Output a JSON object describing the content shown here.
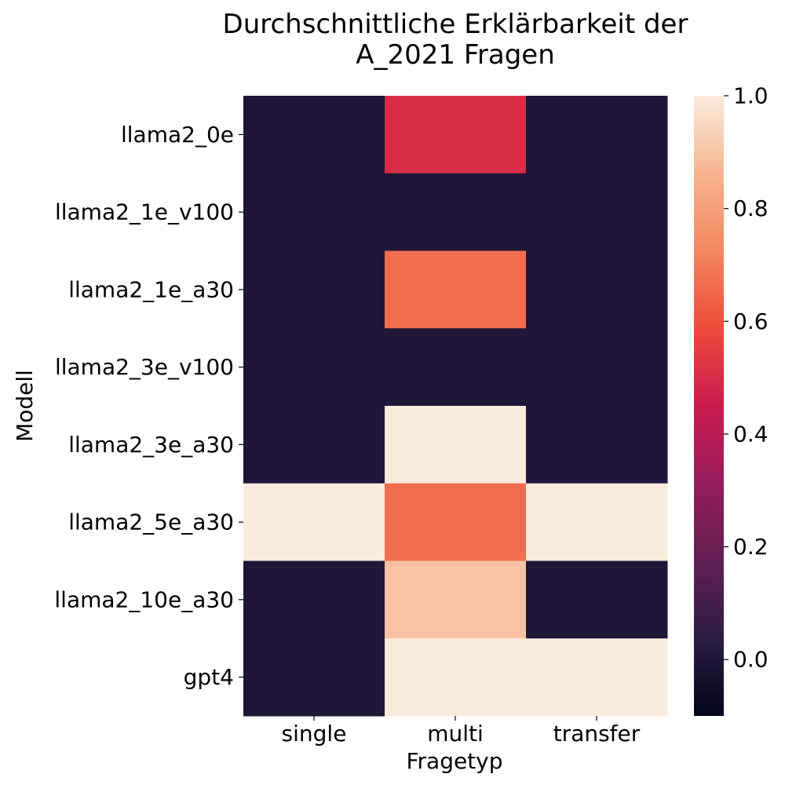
{
  "chart_data": {
    "type": "heatmap",
    "title": "Durchschnittliche Erklärbarkeit der\nA_2021 Fragen",
    "xlabel": "Fragetyp",
    "ylabel": "Modell",
    "x_categories": [
      "single",
      "multi",
      "transfer"
    ],
    "y_categories": [
      "llama2_0e",
      "llama2_1e_v100",
      "llama2_1e_a30",
      "llama2_3e_v100",
      "llama2_3e_a30",
      "llama2_5e_a30",
      "llama2_10e_a30",
      "gpt4"
    ],
    "values": [
      [
        0.0,
        0.5,
        0.0
      ],
      [
        0.0,
        0.0,
        0.0
      ],
      [
        0.0,
        0.667,
        0.0
      ],
      [
        0.0,
        0.0,
        0.0
      ],
      [
        0.0,
        1.0,
        0.0
      ],
      [
        1.0,
        0.667,
        1.0
      ],
      [
        0.0,
        0.9,
        0.0
      ],
      [
        0.0,
        1.0,
        1.0
      ]
    ],
    "colorbar": {
      "range": [
        -0.1,
        1.0
      ],
      "ticks": [
        0.0,
        0.2,
        0.4,
        0.6,
        0.8,
        1.0
      ],
      "tick_labels": [
        "0.0",
        "0.2",
        "0.4",
        "0.6",
        "0.8",
        "1.0"
      ],
      "colormap": "rocket"
    },
    "colormap_stops": [
      "#03051a",
      "#2b1d44",
      "#611f53",
      "#971c5b",
      "#cb1b4f",
      "#ef4a3b",
      "#f4875e",
      "#f6b48f",
      "#faebdd"
    ]
  }
}
